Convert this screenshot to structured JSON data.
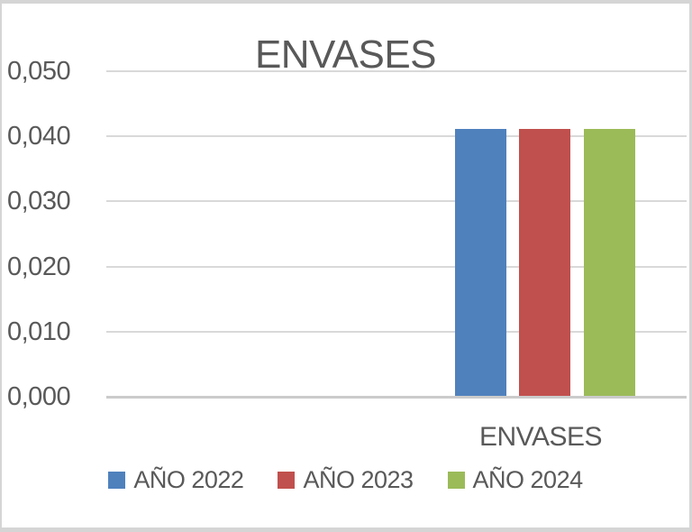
{
  "chart_data": {
    "type": "bar",
    "title": "ENVASES",
    "categories": [
      "ENVASES"
    ],
    "series": [
      {
        "name": "AÑO 2022",
        "color": "#4F81BD",
        "values": [
          0.041
        ]
      },
      {
        "name": "AÑO 2023",
        "color": "#C0504D",
        "values": [
          0.041
        ]
      },
      {
        "name": "AÑO 2024",
        "color": "#9BBB59",
        "values": [
          0.041
        ]
      }
    ],
    "xlabel": "",
    "ylabel": "",
    "ylim": [
      0,
      0.05
    ],
    "yticks": [
      0,
      0.01,
      0.02,
      0.03,
      0.04,
      0.05
    ],
    "ytick_labels": [
      "0,000",
      "0,010",
      "0,020",
      "0,030",
      "0,040",
      "0,050"
    ],
    "grid": "horizontal",
    "legend_position": "bottom",
    "number_format": "comma-decimal"
  },
  "colors": {
    "text": "#595959",
    "gridline": "#D9D9D9",
    "axis_line": "#CBCBCB",
    "frame_border": "#D5D5D5",
    "background": "#FFFFFF"
  }
}
